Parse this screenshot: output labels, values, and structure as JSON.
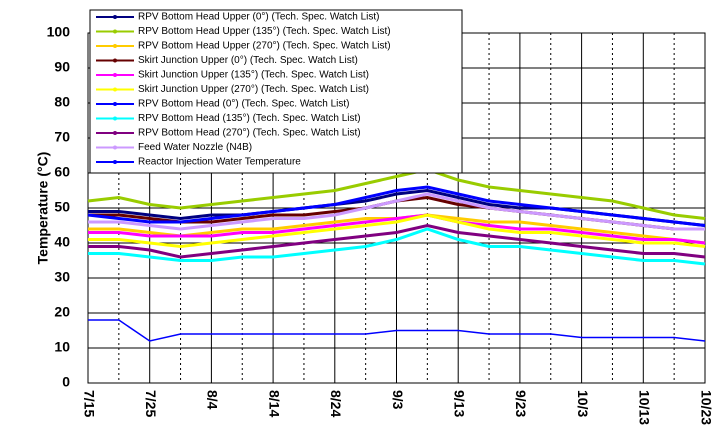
{
  "chart_data": {
    "type": "line",
    "y_label": "Temperature (°C)",
    "categories": [
      "7/15",
      null,
      "7/25",
      null,
      "8/4",
      null,
      "8/14",
      null,
      "8/24",
      null,
      "9/3",
      null,
      "9/13",
      null,
      "9/23",
      null,
      "10/3",
      null,
      "10/13",
      null,
      "10/23"
    ],
    "ylim": [
      0,
      100
    ],
    "yticks": [
      0,
      10,
      20,
      30,
      40,
      50,
      60,
      70,
      80,
      90,
      100
    ],
    "grid": true,
    "series": [
      {
        "name": "RPV Bottom Head Upper (0°) (Tech. Spec. Watch List)",
        "color": "#000080",
        "values": [
          49,
          49,
          48,
          47,
          48,
          48,
          49,
          50,
          51,
          52,
          54,
          55,
          53,
          51,
          50,
          50,
          49,
          48,
          47,
          46,
          45
        ]
      },
      {
        "name": "RPV Bottom Head Upper (135°) (Tech. Spec. Watch List)",
        "color": "#99cc00",
        "values": [
          52,
          53,
          51,
          50,
          51,
          52,
          53,
          54,
          55,
          57,
          59,
          61,
          58,
          56,
          55,
          54,
          53,
          52,
          50,
          48,
          47
        ]
      },
      {
        "name": "RPV Bottom Head Upper (270°) (Tech. Spec. Watch List)",
        "color": "#ffcc00",
        "values": [
          44,
          44,
          43,
          42,
          43,
          44,
          44,
          45,
          46,
          47,
          47,
          48,
          47,
          46,
          46,
          45,
          44,
          43,
          42,
          41,
          40
        ]
      },
      {
        "name": "Skirt Junction Upper (0°) (Tech. Spec. Watch List)",
        "color": "#660000",
        "values": [
          48,
          48,
          47,
          46,
          46,
          47,
          48,
          48,
          49,
          50,
          52,
          53,
          51,
          50,
          49,
          48,
          47,
          46,
          45,
          44,
          44
        ]
      },
      {
        "name": "Skirt Junction Upper (135°) (Tech. Spec. Watch List)",
        "color": "#ff00ff",
        "values": [
          43,
          43,
          42,
          42,
          42,
          43,
          43,
          44,
          45,
          46,
          47,
          48,
          46,
          45,
          44,
          44,
          43,
          42,
          41,
          41,
          40
        ]
      },
      {
        "name": "Skirt Junction Upper (270°) (Tech. Spec. Watch List)",
        "color": "#ffff00",
        "values": [
          41,
          41,
          40,
          39,
          40,
          41,
          42,
          43,
          44,
          45,
          46,
          48,
          46,
          44,
          43,
          43,
          42,
          41,
          40,
          40,
          39
        ]
      },
      {
        "name": "RPV Bottom Head (0°) (Tech. Spec. Watch List)",
        "color": "#0000ff",
        "values": [
          48,
          47,
          46,
          46,
          47,
          48,
          49,
          50,
          51,
          53,
          55,
          56,
          54,
          52,
          51,
          50,
          49,
          48,
          47,
          46,
          45
        ]
      },
      {
        "name": "RPV Bottom Head (135°) (Tech. Spec. Watch List)",
        "color": "#00ffff",
        "values": [
          37,
          37,
          36,
          35,
          35,
          36,
          36,
          37,
          38,
          39,
          41,
          44,
          41,
          39,
          39,
          38,
          37,
          36,
          35,
          35,
          34
        ]
      },
      {
        "name": "RPV Bottom Head (270°) (Tech. Spec. Watch List)",
        "color": "#800080",
        "values": [
          39,
          39,
          38,
          36,
          37,
          38,
          39,
          40,
          41,
          42,
          43,
          45,
          43,
          42,
          41,
          40,
          39,
          38,
          37,
          37,
          36
        ]
      },
      {
        "name": "Feed Water Nozzle (N4B)",
        "color": "#cc99ff",
        "values": [
          46,
          46,
          45,
          44,
          45,
          46,
          47,
          47,
          48,
          50,
          52,
          54,
          52,
          50,
          49,
          48,
          47,
          46,
          45,
          44,
          44
        ]
      },
      {
        "name": "Reactor Injection Water Temperature",
        "color": "#0000ff",
        "values": [
          18,
          18,
          12,
          14,
          14,
          14,
          14,
          14,
          14,
          14,
          15,
          15,
          15,
          14,
          14,
          14,
          13,
          13,
          13,
          13,
          12
        ]
      }
    ]
  }
}
